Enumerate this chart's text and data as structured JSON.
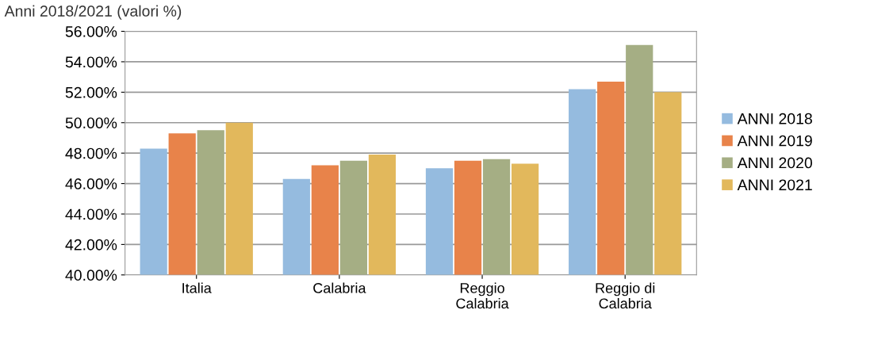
{
  "chart_data": {
    "type": "bar",
    "title": "Anni 2018/2021 (valori %)",
    "categories": [
      "Italia",
      "Calabria",
      "Reggio\nCalabria",
      "Reggio di\nCalabria"
    ],
    "series": [
      {
        "name": "ANNI 2018",
        "color": "#95bbdf",
        "values": [
          48.3,
          46.3,
          47.0,
          52.2
        ]
      },
      {
        "name": "ANNI 2019",
        "color": "#e8834a",
        "values": [
          49.3,
          47.2,
          47.5,
          52.7
        ]
      },
      {
        "name": "ANNI 2020",
        "color": "#a5ae84",
        "values": [
          49.5,
          47.5,
          47.6,
          55.1
        ]
      },
      {
        "name": "ANNI 2021",
        "color": "#e2b85c",
        "values": [
          50.0,
          47.9,
          47.3,
          52.0
        ]
      }
    ],
    "ylim": [
      40,
      56
    ],
    "yticks": [
      {
        "value": 40,
        "label": "40.00%"
      },
      {
        "value": 42,
        "label": "42.00%"
      },
      {
        "value": 44,
        "label": "44.00%"
      },
      {
        "value": 46,
        "label": "46.00%"
      },
      {
        "value": 48,
        "label": "48.00%"
      },
      {
        "value": 50,
        "label": "50.00%"
      },
      {
        "value": 52,
        "label": "52.00%"
      },
      {
        "value": 54,
        "label": "54.00%"
      },
      {
        "value": 56,
        "label": "56.00%"
      }
    ],
    "grid": "y",
    "legend": "right"
  }
}
